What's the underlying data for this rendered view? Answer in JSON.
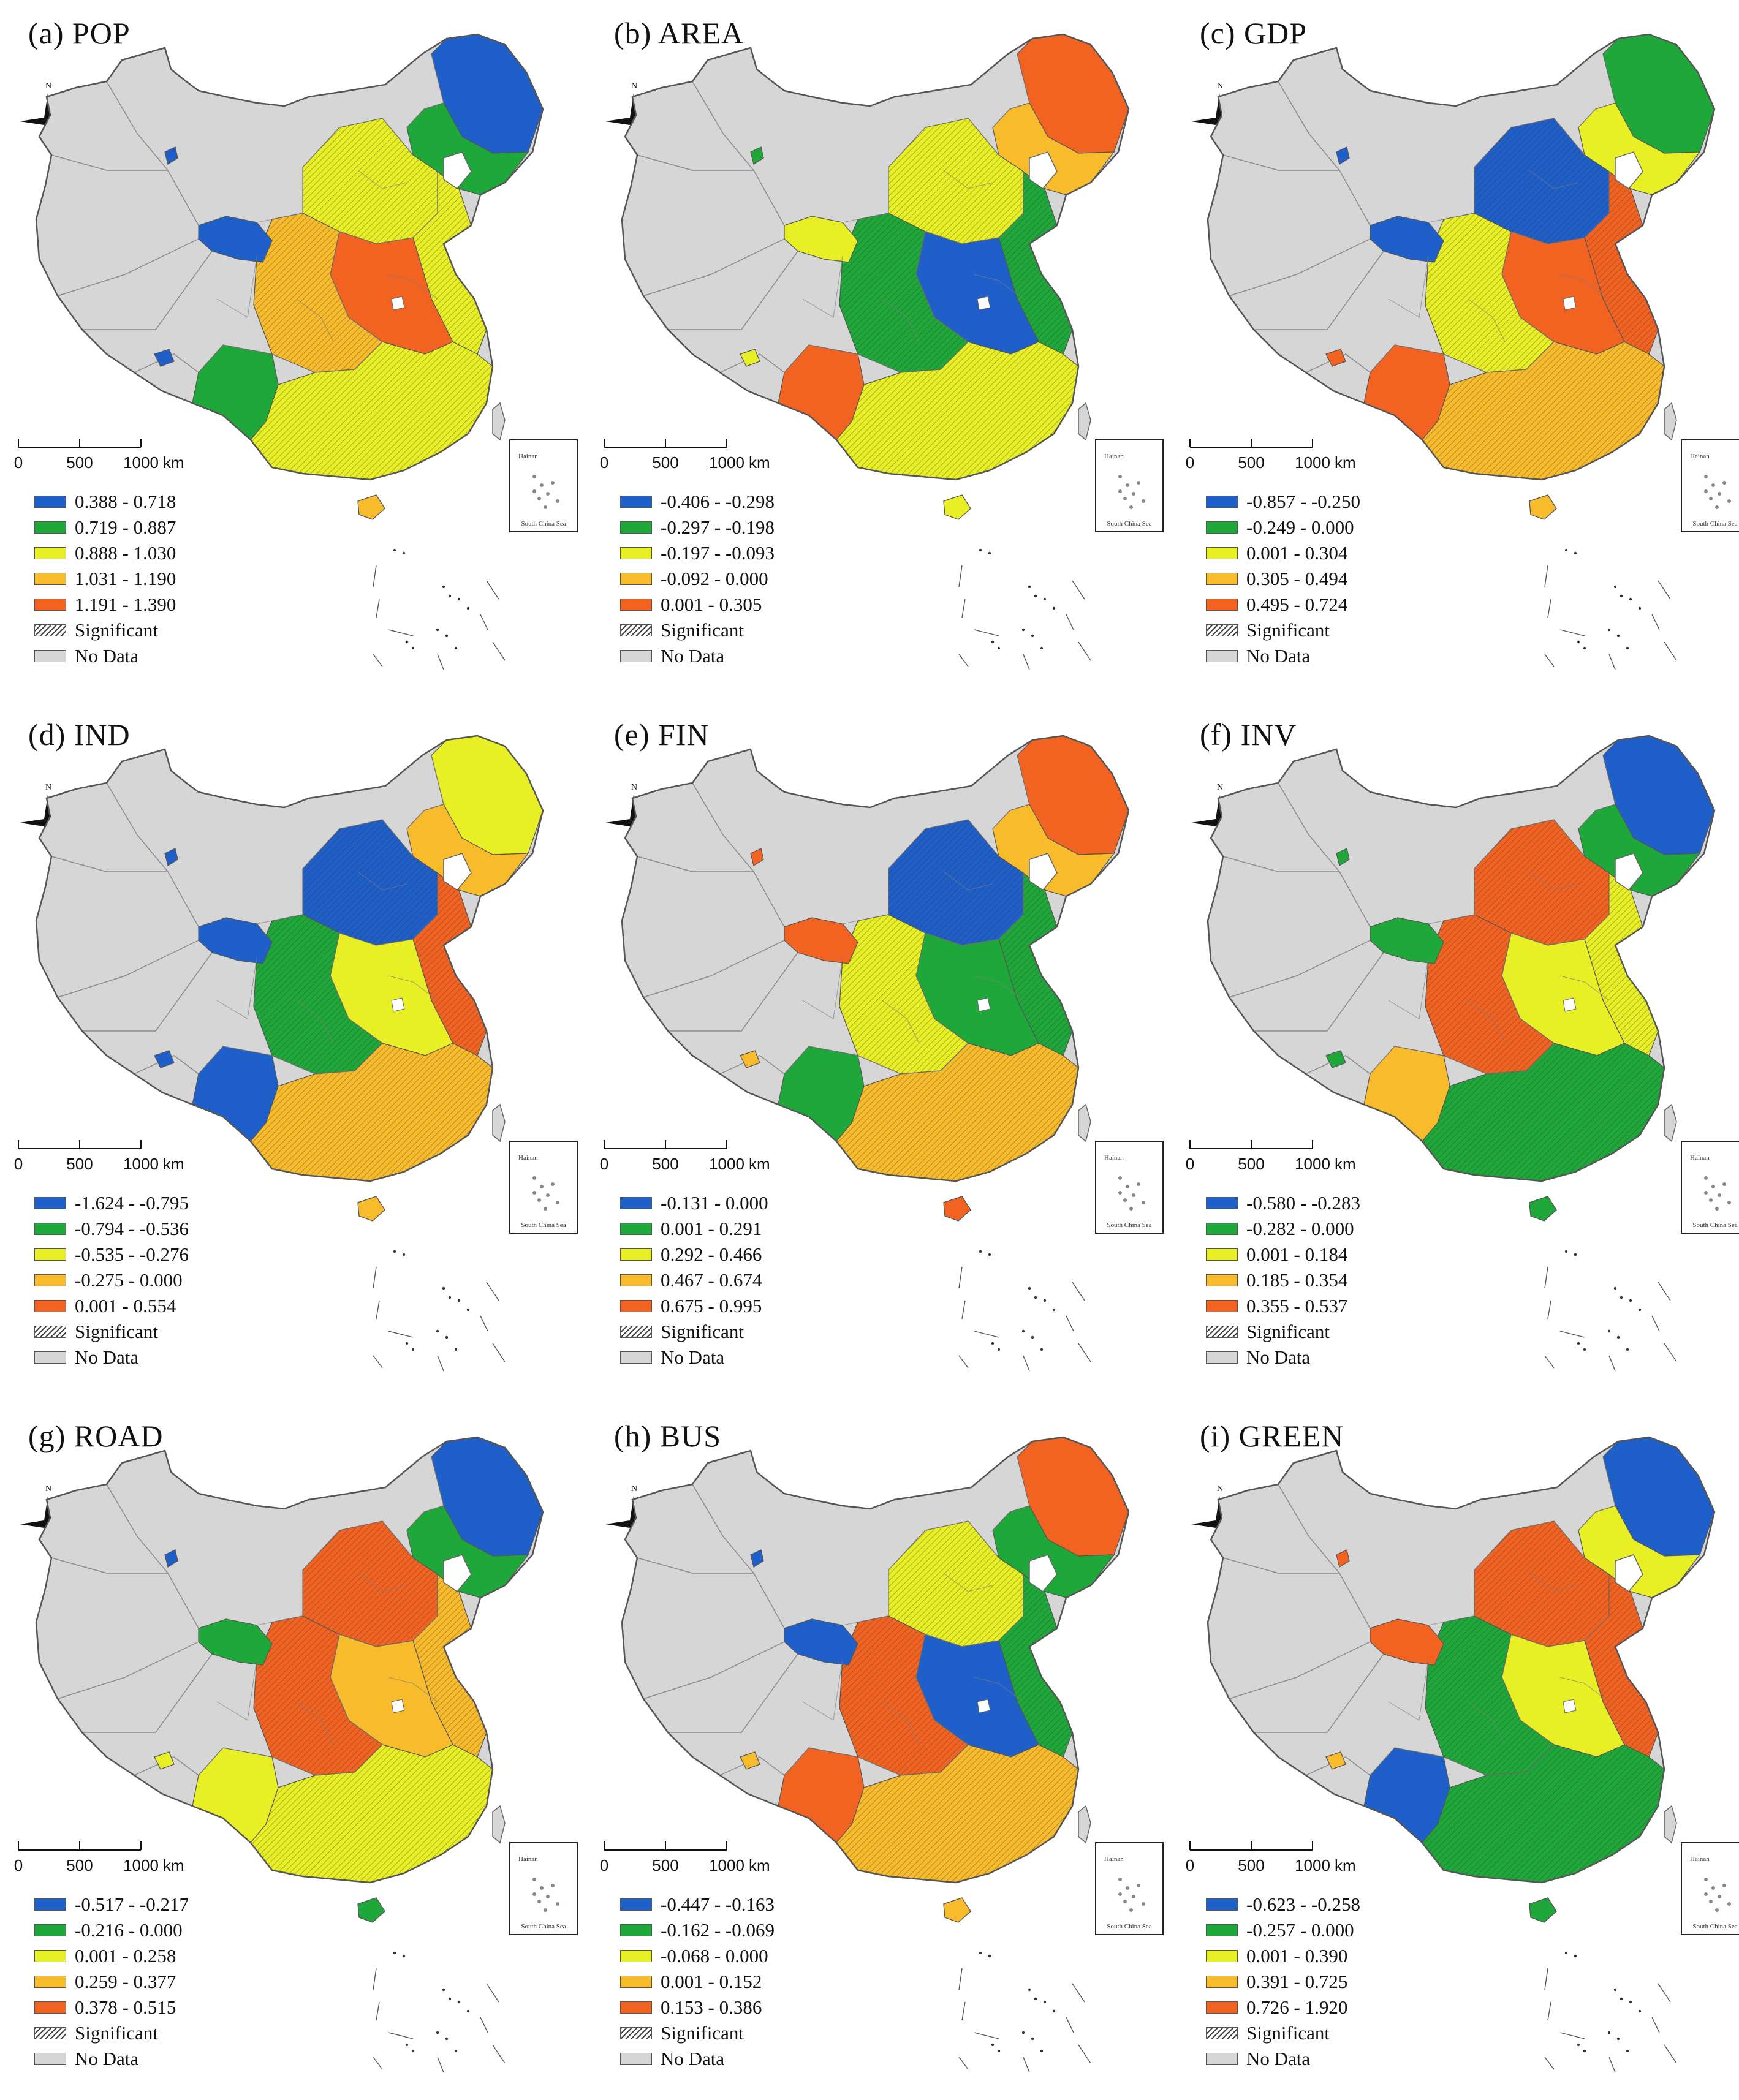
{
  "colors": {
    "class1": "#1f5fc9",
    "class2": "#1fa83a",
    "class3": "#e8f025",
    "class4": "#f8bb2c",
    "class5": "#f26322",
    "nodata": "#d6d6d6",
    "boundary": "#7d7d7d"
  },
  "scale_bar": {
    "labels": [
      "0",
      "500",
      "1000",
      "km"
    ]
  },
  "north_arrow": {
    "label": "N"
  },
  "inset": {
    "top_label": "Hainan",
    "bottom_label": "South China Sea"
  },
  "legend_common": {
    "significant": "Significant",
    "no_data": "No Data"
  },
  "panels": [
    {
      "title": "(a) POP",
      "classes": [
        "0.388 - 0.718",
        "0.719 - 0.887",
        "0.888 - 1.030",
        "1.031 - 1.190",
        "1.191 - 1.390"
      ],
      "regions": {
        "far_northeast": 1,
        "northeast": 2,
        "north_china": 3,
        "east_coast": 3,
        "central_east": 5,
        "central": 4,
        "southwest": 2,
        "south": 3,
        "west_gansu": 1,
        "xinjiang_spot": 1,
        "tibet_spot": 1,
        "hainan": 4
      }
    },
    {
      "title": "(b) AREA",
      "classes": [
        "-0.406 - -0.298",
        "-0.297 - -0.198",
        "-0.197 - -0.093",
        "-0.092 - 0.000",
        "0.001 - 0.305"
      ],
      "regions": {
        "far_northeast": 5,
        "northeast": 4,
        "north_china": 3,
        "east_coast": 2,
        "central_east": 1,
        "central": 2,
        "southwest": 5,
        "south": 3,
        "west_gansu": 3,
        "xinjiang_spot": 2,
        "tibet_spot": 3,
        "hainan": 3
      }
    },
    {
      "title": "(c) GDP",
      "classes": [
        "-0.857 - -0.250",
        "-0.249 - 0.000",
        "0.001 - 0.304",
        "0.305 - 0.494",
        "0.495 - 0.724"
      ],
      "regions": {
        "far_northeast": 2,
        "northeast": 3,
        "north_china": 1,
        "east_coast": 5,
        "central_east": 5,
        "central": 3,
        "southwest": 5,
        "south": 4,
        "west_gansu": 1,
        "xinjiang_spot": 1,
        "tibet_spot": 5,
        "hainan": 4
      }
    },
    {
      "title": "(d) IND",
      "classes": [
        "-1.624 - -0.795",
        "-0.794 - -0.536",
        "-0.535 - -0.276",
        "-0.275 - 0.000",
        "0.001 - 0.554"
      ],
      "regions": {
        "far_northeast": 3,
        "northeast": 4,
        "north_china": 1,
        "east_coast": 5,
        "central_east": 3,
        "central": 2,
        "southwest": 1,
        "south": 4,
        "west_gansu": 1,
        "xinjiang_spot": 1,
        "tibet_spot": 1,
        "hainan": 4
      }
    },
    {
      "title": "(e) FIN",
      "classes": [
        "-0.131 - 0.000",
        "0.001 - 0.291",
        "0.292 - 0.466",
        "0.467 - 0.674",
        "0.675 - 0.995"
      ],
      "regions": {
        "far_northeast": 5,
        "northeast": 4,
        "north_china": 1,
        "east_coast": 2,
        "central_east": 2,
        "central": 3,
        "southwest": 2,
        "south": 4,
        "west_gansu": 5,
        "xinjiang_spot": 5,
        "tibet_spot": 4,
        "hainan": 5
      }
    },
    {
      "title": "(f) INV",
      "classes": [
        "-0.580 - -0.283",
        "-0.282 - 0.000",
        "0.001 - 0.184",
        "0.185 - 0.354",
        "0.355 - 0.537"
      ],
      "regions": {
        "far_northeast": 1,
        "northeast": 2,
        "north_china": 5,
        "east_coast": 3,
        "central_east": 3,
        "central": 5,
        "southwest": 4,
        "south": 2,
        "west_gansu": 2,
        "xinjiang_spot": 2,
        "tibet_spot": 2,
        "hainan": 2
      }
    },
    {
      "title": "(g) ROAD",
      "classes": [
        "-0.517 - -0.217",
        "-0.216 - 0.000",
        "0.001 - 0.258",
        "0.259 - 0.377",
        "0.378 - 0.515"
      ],
      "regions": {
        "far_northeast": 1,
        "northeast": 2,
        "north_china": 5,
        "east_coast": 4,
        "central_east": 4,
        "central": 5,
        "southwest": 3,
        "south": 3,
        "west_gansu": 2,
        "xinjiang_spot": 1,
        "tibet_spot": 3,
        "hainan": 2
      }
    },
    {
      "title": "(h) BUS",
      "classes": [
        "-0.447 - -0.163",
        "-0.162 - -0.069",
        "-0.068 - 0.000",
        "0.001 - 0.152",
        "0.153 - 0.386"
      ],
      "regions": {
        "far_northeast": 5,
        "northeast": 2,
        "north_china": 3,
        "east_coast": 2,
        "central_east": 1,
        "central": 5,
        "southwest": 5,
        "south": 4,
        "west_gansu": 1,
        "xinjiang_spot": 1,
        "tibet_spot": 4,
        "hainan": 4
      }
    },
    {
      "title": "(i) GREEN",
      "classes": [
        "-0.623 - -0.258",
        "-0.257 - 0.000",
        "0.001 - 0.390",
        "0.391 - 0.725",
        "0.726 - 1.920"
      ],
      "regions": {
        "far_northeast": 1,
        "northeast": 3,
        "north_china": 5,
        "east_coast": 5,
        "central_east": 3,
        "central": 2,
        "southwest": 1,
        "south": 2,
        "west_gansu": 5,
        "xinjiang_spot": 5,
        "tibet_spot": 4,
        "hainan": 2
      }
    }
  ]
}
